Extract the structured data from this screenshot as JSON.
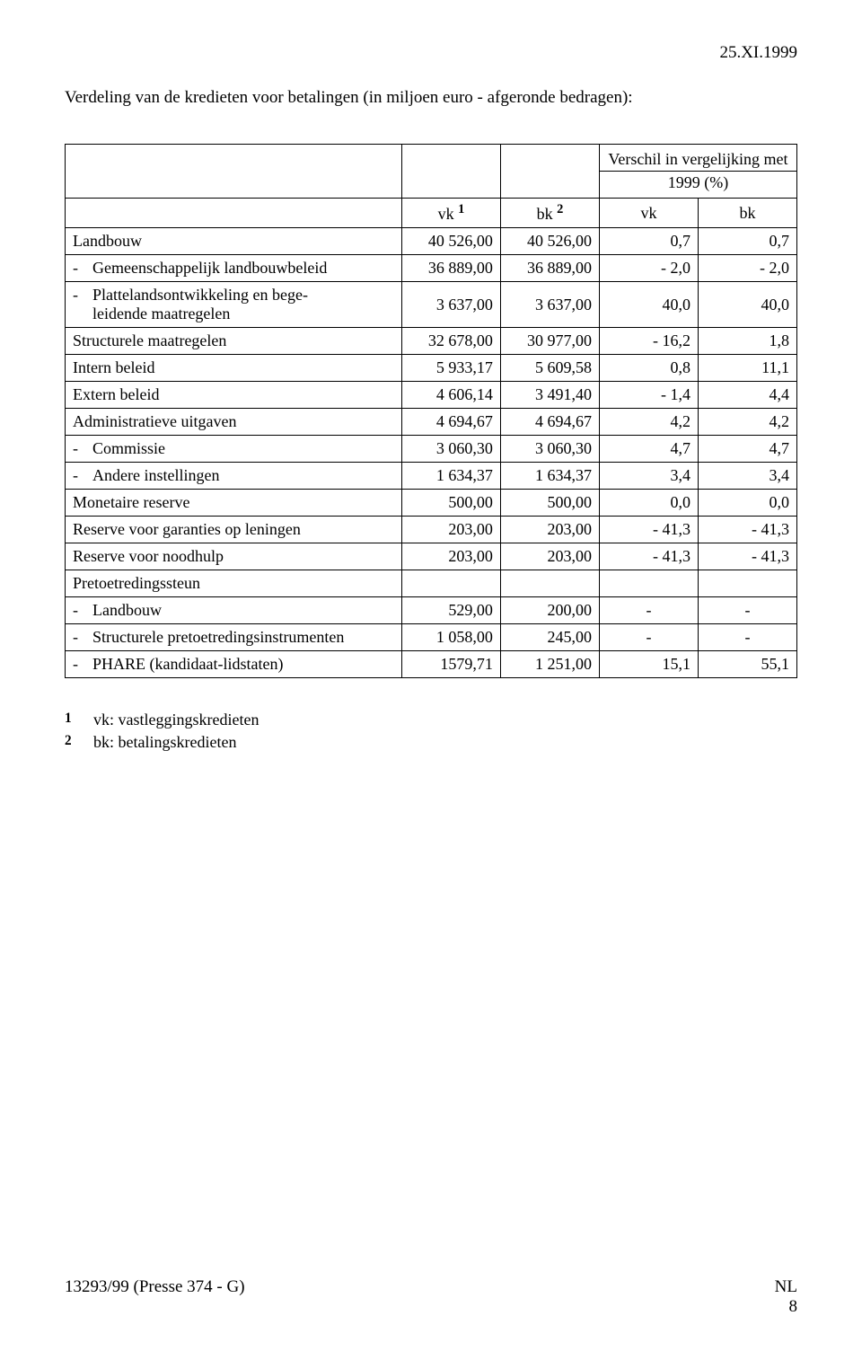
{
  "header": {
    "date": "25.XI.1999"
  },
  "intro": "Verdeling van de kredieten voor betalingen (in miljoen euro - afgeronde bedragen):",
  "table": {
    "colgroup_header": {
      "main": "Verschil in vergelijking met",
      "sub": "1999 (%)"
    },
    "head": {
      "vk1_label": "vk",
      "vk1_sup": "1",
      "bk2_label": "bk",
      "bk2_sup": "2",
      "vk": "vk",
      "bk": "bk"
    },
    "rows": [
      {
        "label": "Landbouw",
        "indent": false,
        "vk1": "40 526,00",
        "bk2": "40 526,00",
        "vk": "0,7",
        "bk": "0,7"
      },
      {
        "label": "Gemeenschappelijk landbouwbeleid",
        "indent": true,
        "vk1": "36 889,00",
        "bk2": "36 889,00",
        "vk": "- 2,0",
        "bk": "- 2,0"
      },
      {
        "label": "Plattelandsontwikkeling en bege-",
        "label2": "leidende maatregelen",
        "indent": true,
        "vk1": "3 637,00",
        "bk2": "3 637,00",
        "vk": "40,0",
        "bk": "40,0"
      },
      {
        "label": "Structurele maatregelen",
        "indent": false,
        "vk1": "32 678,00",
        "bk2": "30 977,00",
        "vk": "- 16,2",
        "bk": "1,8"
      },
      {
        "label": "Intern beleid",
        "indent": false,
        "vk1": "5 933,17",
        "bk2": "5 609,58",
        "vk": "0,8",
        "bk": "11,1"
      },
      {
        "label": "Extern beleid",
        "indent": false,
        "vk1": "4 606,14",
        "bk2": "3 491,40",
        "vk": "- 1,4",
        "bk": "4,4"
      },
      {
        "label": "Administratieve uitgaven",
        "indent": false,
        "vk1": "4 694,67",
        "bk2": "4 694,67",
        "vk": "4,2",
        "bk": "4,2"
      },
      {
        "label": "Commissie",
        "indent": true,
        "vk1": "3 060,30",
        "bk2": "3 060,30",
        "vk": "4,7",
        "bk": "4,7"
      },
      {
        "label": "Andere instellingen",
        "indent": true,
        "vk1": "1 634,37",
        "bk2": "1 634,37",
        "vk": "3,4",
        "bk": "3,4"
      },
      {
        "label": "Monetaire reserve",
        "indent": false,
        "vk1": "500,00",
        "bk2": "500,00",
        "vk": "0,0",
        "bk": "0,0"
      },
      {
        "label": "Reserve voor garanties op leningen",
        "indent": false,
        "vk1": "203,00",
        "bk2": "203,00",
        "vk": "- 41,3",
        "bk": "- 41,3"
      },
      {
        "label": "Reserve voor noodhulp",
        "indent": false,
        "vk1": "203,00",
        "bk2": "203,00",
        "vk": "- 41,3",
        "bk": "- 41,3"
      },
      {
        "label": "Pretoetredingssteun",
        "indent": false,
        "vk1": "",
        "bk2": "",
        "vk": "",
        "bk": ""
      },
      {
        "label": "Landbouw",
        "indent": true,
        "vk1": "529,00",
        "bk2": "200,00",
        "vk": "-",
        "bk": "-"
      },
      {
        "label": "Structurele pretoetredingsinstrumenten",
        "indent": true,
        "vk1": "1 058,00",
        "bk2": "245,00",
        "vk": "-",
        "bk": "-"
      },
      {
        "label": "PHARE (kandidaat-lidstaten)",
        "indent": true,
        "vk1": "1579,71",
        "bk2": "1 251,00",
        "vk": "15,1",
        "bk": "55,1"
      }
    ]
  },
  "footnotes": [
    {
      "num": "1",
      "text": "vk: vastleggingskredieten"
    },
    {
      "num": "2",
      "text": "bk: betalingskredieten"
    }
  ],
  "footer": {
    "left": "13293/99 (Presse 374 - G)",
    "right_top": "NL",
    "right_bottom": "8"
  }
}
